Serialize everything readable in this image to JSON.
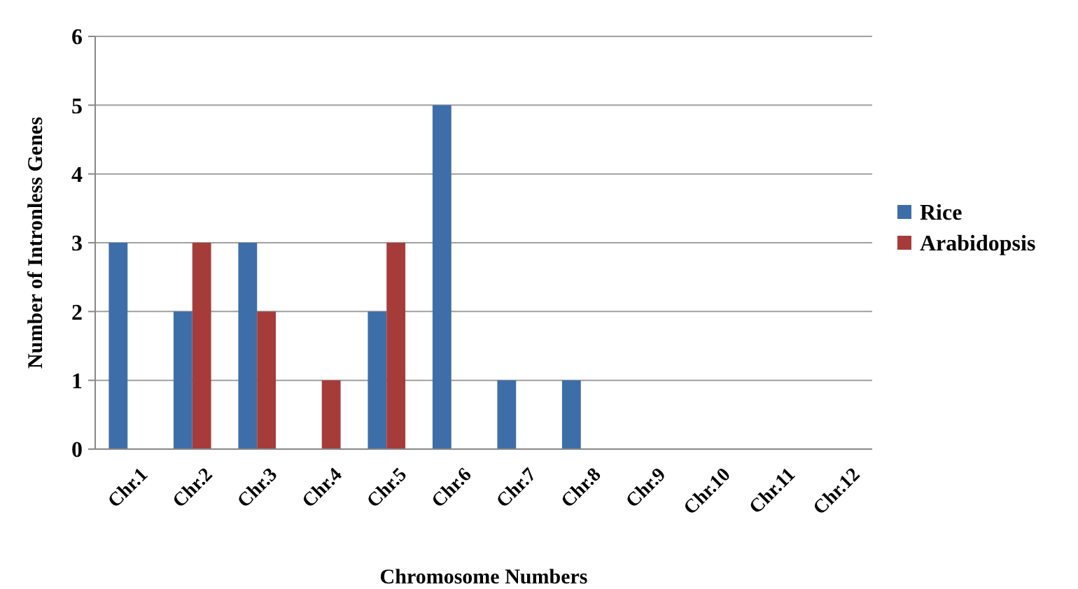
{
  "chart_data": {
    "type": "bar",
    "xlabel": "Chromosome Numbers",
    "ylabel": "Number of Intronless Genes",
    "categories": [
      "Chr.1",
      "Chr.2",
      "Chr.3",
      "Chr.4",
      "Chr.5",
      "Chr.6",
      "Chr.7",
      "Chr.8",
      "Chr.9",
      "Chr.10",
      "Chr.11",
      "Chr.12"
    ],
    "series": [
      {
        "name": "Rice",
        "color": "#3e6ea8",
        "values": [
          3,
          2,
          3,
          0,
          2,
          5,
          1,
          1,
          0,
          0,
          0,
          0
        ]
      },
      {
        "name": "Arabidopsis",
        "color": "#a63c3a",
        "values": [
          0,
          3,
          2,
          1,
          3,
          0,
          0,
          0,
          0,
          0,
          0,
          0
        ]
      }
    ],
    "ylim": [
      0,
      6
    ],
    "yticks": [
      0,
      1,
      2,
      3,
      4,
      5,
      6
    ],
    "grid": "y",
    "legend": "right"
  }
}
